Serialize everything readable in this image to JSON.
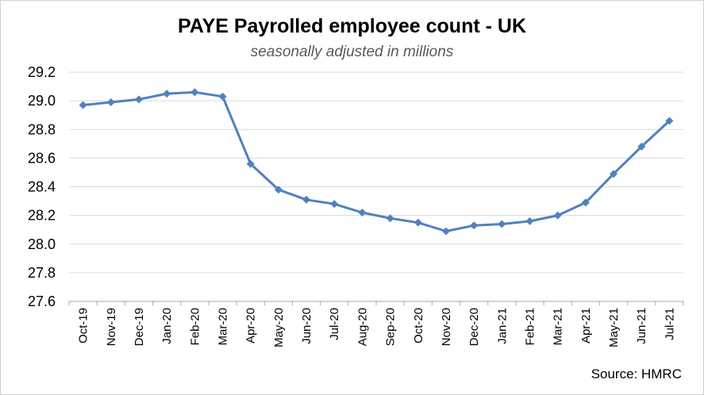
{
  "chart_data": {
    "type": "line",
    "title": "PAYE Payrolled employee count - UK",
    "subtitle": "seasonally adjusted in millions",
    "source": "Source: HMRC",
    "xlabel": "",
    "ylabel": "",
    "ylim": [
      27.6,
      29.2
    ],
    "yticks": [
      "29.2",
      "29.0",
      "28.8",
      "28.6",
      "28.4",
      "28.2",
      "28.0",
      "27.8",
      "27.6"
    ],
    "grid": true,
    "categories": [
      "Oct-19",
      "Nov-19",
      "Dec-19",
      "Jan-20",
      "Feb-20",
      "Mar-20",
      "Apr-20",
      "May-20",
      "Jun-20",
      "Jul-20",
      "Aug-20",
      "Sep-20",
      "Oct-20",
      "Nov-20",
      "Dec-20",
      "Jan-21",
      "Feb-21",
      "Mar-21",
      "Apr-21",
      "May-21",
      "Jun-21",
      "Jul-21"
    ],
    "series": [
      {
        "values": [
          28.97,
          28.99,
          29.01,
          29.05,
          29.06,
          29.03,
          28.56,
          28.38,
          28.31,
          28.28,
          28.22,
          28.18,
          28.15,
          28.09,
          28.13,
          28.14,
          28.16,
          28.2,
          28.29,
          28.49,
          28.68,
          28.86
        ],
        "color": "#4f81bd"
      }
    ]
  }
}
